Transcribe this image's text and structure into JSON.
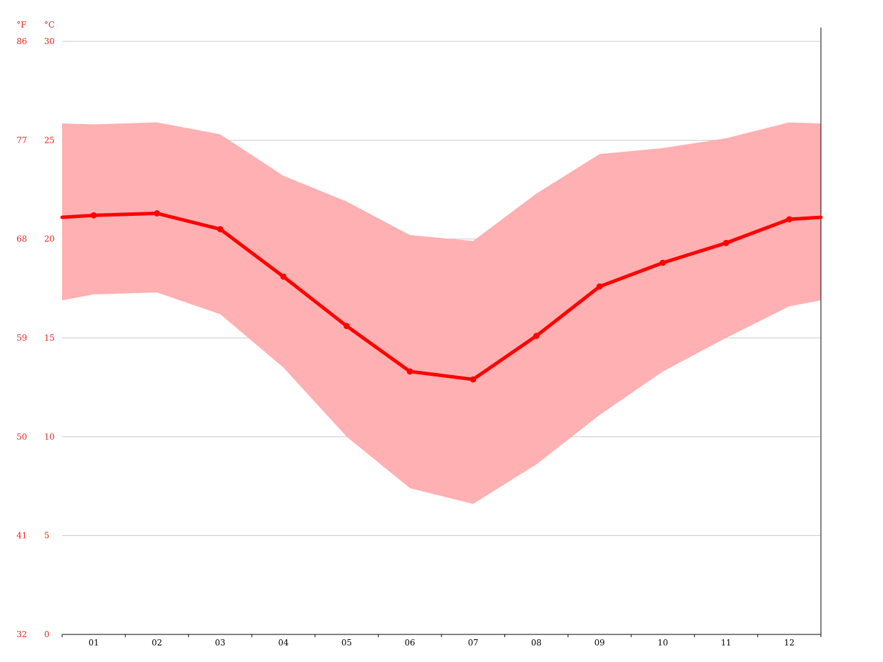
{
  "chart_data": {
    "type": "line",
    "unit_labels": {
      "fahrenheit": "°F",
      "celsius": "°C"
    },
    "categories": [
      "01",
      "02",
      "03",
      "04",
      "05",
      "06",
      "07",
      "08",
      "09",
      "10",
      "11",
      "12"
    ],
    "ylim": [
      0,
      30
    ],
    "y_ticks": [
      {
        "c": "30",
        "f": "86"
      },
      {
        "c": "25",
        "f": "77"
      },
      {
        "c": "20",
        "f": "68"
      },
      {
        "c": "15",
        "f": "59"
      },
      {
        "c": "10",
        "f": "50"
      },
      {
        "c": "5",
        "f": "41"
      },
      {
        "c": "0",
        "f": "32"
      }
    ],
    "grid": true,
    "series": [
      {
        "values": [
          21.2,
          21.3,
          20.5,
          18.1,
          15.6,
          13.3,
          12.9,
          15.1,
          17.6,
          18.8,
          19.8,
          21.0
        ]
      }
    ],
    "range_band": {
      "max": [
        25.8,
        25.9,
        25.3,
        23.2,
        21.9,
        20.2,
        19.9,
        22.3,
        24.3,
        24.6,
        25.1,
        25.9
      ],
      "min": [
        17.2,
        17.3,
        16.2,
        13.5,
        10.0,
        7.4,
        6.6,
        8.6,
        11.1,
        13.3,
        15.0,
        16.6
      ]
    },
    "colors": {
      "line": "#ff0000",
      "band": "#ffb0b2",
      "grid": "#c8c8c8",
      "labels": "#e8231c",
      "axis": "#000000"
    }
  }
}
